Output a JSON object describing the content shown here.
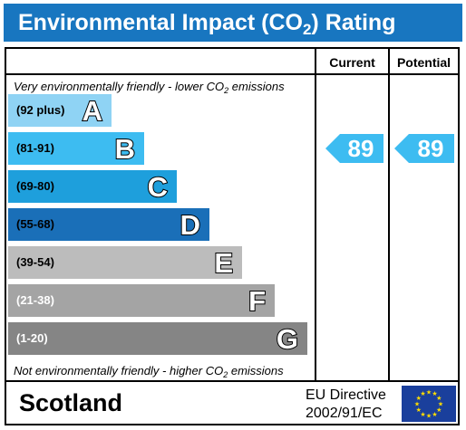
{
  "header": {
    "title_prefix": "Environmental Impact (CO",
    "title_sub": "2",
    "title_suffix": ") Rating"
  },
  "columns": {
    "current": "Current",
    "potential": "Potential"
  },
  "captions": {
    "top_prefix": "Very environmentally friendly - lower CO",
    "top_sub": "2",
    "top_suffix": " emissions",
    "bottom_prefix": "Not environmentally friendly - higher CO",
    "bottom_sub": "2",
    "bottom_suffix": " emissions"
  },
  "bands": [
    {
      "range": "(92 plus)",
      "letter": "A",
      "color": "#8fd3f4",
      "range_color": "#000000"
    },
    {
      "range": "(81-91)",
      "letter": "B",
      "color": "#3dbcf1",
      "range_color": "#000000"
    },
    {
      "range": "(69-80)",
      "letter": "C",
      "color": "#1e9fdc",
      "range_color": "#000000"
    },
    {
      "range": "(55-68)",
      "letter": "D",
      "color": "#1a6fb8",
      "range_color": "#000000"
    },
    {
      "range": "(39-54)",
      "letter": "E",
      "color": "#bcbcbc",
      "range_color": "#000000"
    },
    {
      "range": "(21-38)",
      "letter": "F",
      "color": "#a4a4a4",
      "range_color": "#ffffff"
    },
    {
      "range": "(1-20)",
      "letter": "G",
      "color": "#858585",
      "range_color": "#ffffff"
    }
  ],
  "ratings": {
    "current": {
      "value": "89",
      "band": "B",
      "color": "#3dbcf1"
    },
    "potential": {
      "value": "89",
      "band": "B",
      "color": "#3dbcf1"
    }
  },
  "footer": {
    "country": "Scotland",
    "directive_line1": "EU Directive",
    "directive_line2": "2002/91/EC",
    "flag_color": "#1a3f9c",
    "star_color": "#ffdd00"
  }
}
